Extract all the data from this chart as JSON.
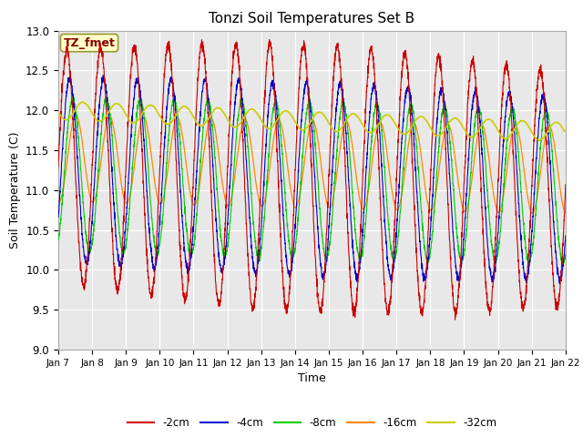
{
  "title": "Tonzi Soil Temperatures Set B",
  "xlabel": "Time",
  "ylabel": "Soil Temperature (C)",
  "ylim": [
    9.0,
    13.0
  ],
  "yticks": [
    9.0,
    9.5,
    10.0,
    10.5,
    11.0,
    11.5,
    12.0,
    12.5,
    13.0
  ],
  "line_colors": {
    "-2cm": "#cc0000",
    "-4cm": "#0000cc",
    "-8cm": "#00cc00",
    "-16cm": "#ff8800",
    "-32cm": "#cccc00"
  },
  "annotation_text": "TZ_fmet",
  "annotation_color": "#880000",
  "annotation_bg": "#ffffcc",
  "annotation_edge": "#999933",
  "fig_bg": "#ffffff",
  "axes_bg": "#e8e8e8",
  "grid_color": "#ffffff",
  "n_points": 3000,
  "xtick_labels": [
    "Jan 7",
    "Jan 8",
    "Jan 9",
    "Jan 10",
    "Jan 11",
    "Jan 12",
    "Jan 13",
    "Jan 14",
    "Jan 15",
    "Jan 16",
    "Jan 17",
    "Jan 18",
    "Jan 19",
    "Jan 20",
    "Jan 21",
    "Jan 22"
  ],
  "legend_labels": [
    "-2cm",
    "-4cm",
    "-8cm",
    "-16cm",
    "-32cm"
  ]
}
